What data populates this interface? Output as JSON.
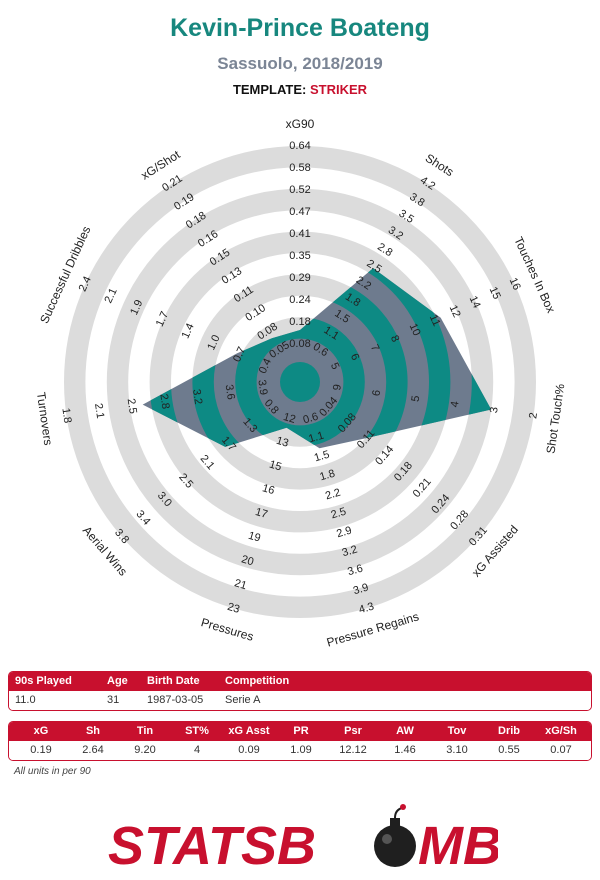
{
  "header": {
    "player": "Kevin-Prince Boateng",
    "team_season": "Sassuolo, 2018/2019",
    "template_label": "TEMPLATE:",
    "template_value": "STRIKER"
  },
  "colors": {
    "player_poly": "#0d8a84",
    "overlay_gray": "#6e7b8e",
    "ring_gray": "#dcdcdc",
    "title_teal": "#17877e",
    "subtitle_gray": "#7b8595",
    "brand_red": "#c8102e"
  },
  "chart_data": {
    "type": "radar",
    "rings": 5,
    "axes": [
      {
        "name": "xG90",
        "ticks": [
          "0.08",
          "0.18",
          "0.24",
          "0.29",
          "0.35",
          "0.41",
          "0.47",
          "0.52",
          "0.58",
          "0.64"
        ],
        "player_value": 0.19
      },
      {
        "name": "Shots",
        "ticks": [
          "0.6",
          "1.1",
          "1.5",
          "1.8",
          "2.2",
          "2.5",
          "2.8",
          "3.2",
          "3.5",
          "3.8",
          "4.2"
        ],
        "player_value": 2.64
      },
      {
        "name": "Touches In Box",
        "ticks": [
          "5",
          "6",
          "7",
          "8",
          "10",
          "11",
          "12",
          "14",
          "15",
          "16"
        ],
        "player_value": 9.2
      },
      {
        "name": "Shot Touch%",
        "ticks": [
          "9",
          "6",
          "5",
          "4",
          "3",
          "2"
        ],
        "player_value": 4
      },
      {
        "name": "xG Assisted",
        "ticks": [
          "0.04",
          "0.08",
          "0.11",
          "0.14",
          "0.18",
          "0.21",
          "0.24",
          "0.28",
          "0.31"
        ],
        "player_value": 0.09
      },
      {
        "name": "Pressure Regains",
        "ticks": [
          "0.6",
          "1.1",
          "1.5",
          "1.8",
          "2.2",
          "2.5",
          "2.9",
          "3.2",
          "3.6",
          "3.9",
          "4.3"
        ],
        "player_value": 1.09
      },
      {
        "name": "Pressures",
        "ticks": [
          "12",
          "13",
          "15",
          "16",
          "17",
          "19",
          "20",
          "21",
          "23"
        ],
        "player_value": 12.12
      },
      {
        "name": "Aerial Wins",
        "ticks": [
          "0.8",
          "1.3",
          "1.7",
          "2.1",
          "2.5",
          "3.0",
          "3.4",
          "3.8"
        ],
        "player_value": 1.46
      },
      {
        "name": "Turnovers",
        "ticks": [
          "3.9",
          "3.6",
          "3.2",
          "2.8",
          "2.5",
          "2.1",
          "1.8"
        ],
        "player_value": 3.1
      },
      {
        "name": "Successful Dribbles",
        "ticks": [
          "0.4",
          "0.7",
          "1.0",
          "1.4",
          "1.7",
          "1.9",
          "2.1",
          "2.4"
        ],
        "player_value": 0.55
      },
      {
        "name": "xG/Shot",
        "ticks": [
          "0.05",
          "0.08",
          "0.10",
          "0.11",
          "0.13",
          "0.15",
          "0.16",
          "0.18",
          "0.19",
          "0.21"
        ],
        "player_value": 0.07
      }
    ],
    "player_polygon_fraction": [
      0.14,
      0.53,
      0.62,
      0.8,
      0.3,
      0.22,
      0.12,
      0.36,
      0.64,
      0.22,
      0.14
    ],
    "overlay_polygon_fraction": [
      0.27,
      0.27,
      0.27,
      0.27,
      0.27,
      0.27,
      0.27,
      0.27,
      0.27,
      0.27,
      0.27
    ]
  },
  "info_table": {
    "headers": [
      "90s Played",
      "Age",
      "Birth Date",
      "Competition"
    ],
    "values": [
      "11.0",
      "31",
      "1987-03-05",
      "Serie A"
    ]
  },
  "stats_table": {
    "headers": [
      "xG",
      "Sh",
      "Tin",
      "ST%",
      "xG Asst",
      "PR",
      "Psr",
      "AW",
      "Tov",
      "Drib",
      "xG/Sh"
    ],
    "values": [
      "0.19",
      "2.64",
      "9.20",
      "4",
      "0.09",
      "1.09",
      "12.12",
      "1.46",
      "3.10",
      "0.55",
      "0.07"
    ]
  },
  "footnote": "All units in per 90",
  "logo": {
    "text_left": "STATSB",
    "text_right": "MB"
  }
}
